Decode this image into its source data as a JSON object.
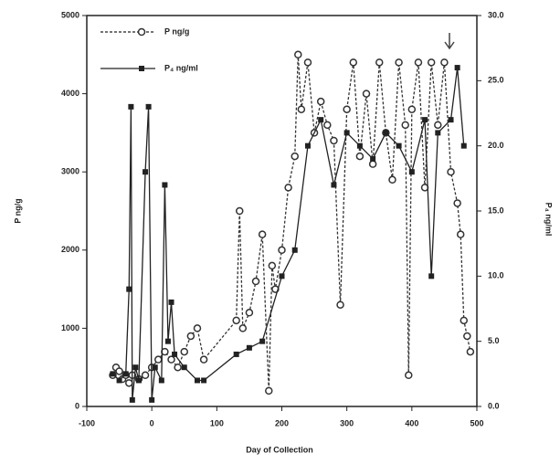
{
  "chart_data": {
    "type": "line",
    "x_label": "Day of Collection",
    "y_label": "P ng/g",
    "y2_label": "P₄ ng/ml",
    "xlim": [
      -100,
      500
    ],
    "xticks": [
      -100,
      0,
      100,
      200,
      300,
      400,
      500
    ],
    "ylim": [
      0,
      5000
    ],
    "yticks": [
      0,
      1000,
      2000,
      3000,
      4000,
      5000
    ],
    "y2lim": [
      0,
      30
    ],
    "y2ticks": [
      {
        "value": 0,
        "label": "0.0"
      },
      {
        "value": 5,
        "label": "5.0"
      },
      {
        "value": 10,
        "label": "10.0"
      },
      {
        "value": 15,
        "label": "15.0"
      },
      {
        "value": 20,
        "label": "20.0"
      },
      {
        "value": 25,
        "label": "25.0"
      },
      {
        "value": 30,
        "label": "30.0"
      }
    ],
    "grid": false,
    "legend": "upper left",
    "series": [
      {
        "name": "P ng/g",
        "color": "#333333",
        "marker": "circle",
        "dash": true,
        "x": [
          -60,
          -55,
          -50,
          -45,
          -40,
          -35,
          -30,
          -20,
          -10,
          0,
          10,
          20,
          30,
          40,
          50,
          60,
          70,
          80,
          130,
          135,
          140,
          150,
          160,
          170,
          180,
          185,
          190,
          200,
          210,
          220,
          225,
          230,
          240,
          250,
          260,
          270,
          280,
          290,
          300,
          310,
          320,
          330,
          340,
          350,
          360,
          370,
          380,
          390,
          395,
          400,
          410,
          420,
          430,
          440,
          450,
          460,
          470,
          475,
          480,
          485,
          490
        ],
        "values": [
          400,
          500,
          450,
          350,
          400,
          300,
          400,
          350,
          400,
          500,
          600,
          700,
          600,
          500,
          700,
          900,
          1000,
          600,
          1100,
          2500,
          1000,
          1200,
          1600,
          2200,
          200,
          1800,
          1500,
          2000,
          2800,
          3200,
          4500,
          3800,
          4400,
          3500,
          3900,
          3600,
          3400,
          1300,
          3800,
          4400,
          3200,
          4000,
          3100,
          4400,
          3500,
          2900,
          4400,
          3600,
          400,
          3800,
          4400,
          2800,
          4400,
          3600,
          4400,
          3000,
          2600,
          2200,
          1100,
          900,
          700
        ]
      },
      {
        "name": "P₄ ng/ml",
        "color": "#222222",
        "marker": "square",
        "dash": false,
        "axis": "y2",
        "x": [
          -60,
          -50,
          -40,
          -35,
          -32,
          -30,
          -25,
          -20,
          -10,
          -5,
          0,
          5,
          15,
          20,
          25,
          30,
          35,
          50,
          70,
          80,
          130,
          150,
          170,
          200,
          220,
          240,
          260,
          280,
          300,
          320,
          340,
          360,
          380,
          400,
          420,
          430,
          440,
          460,
          470,
          480
        ],
        "values": [
          2.5,
          2,
          2.5,
          9,
          23,
          0.5,
          3,
          2,
          18,
          23,
          0.5,
          3,
          2,
          17,
          5,
          8,
          4,
          3,
          2,
          2,
          4,
          4.5,
          5,
          10,
          12,
          20,
          22,
          17,
          21,
          20,
          19,
          21,
          20,
          18,
          22,
          10,
          21,
          22,
          26,
          20
        ]
      }
    ]
  }
}
